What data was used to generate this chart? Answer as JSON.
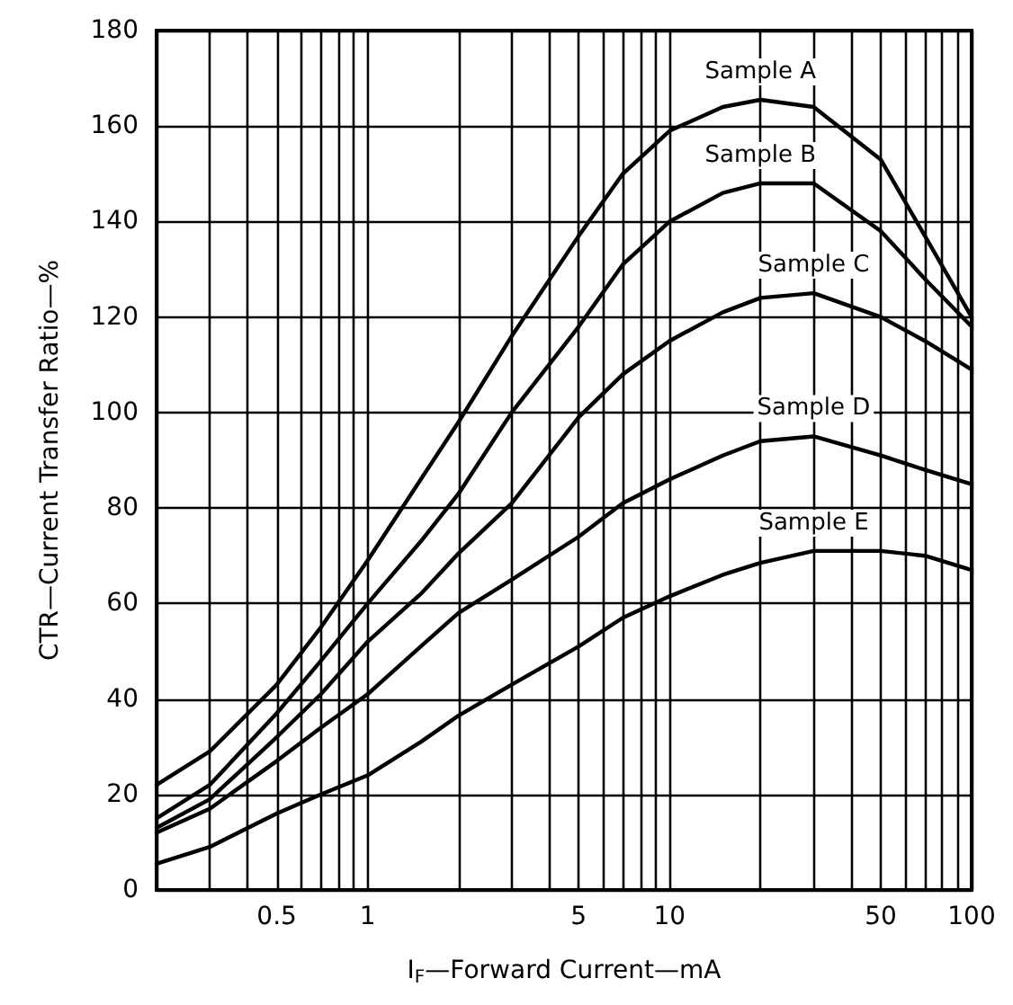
{
  "chart_data": {
    "type": "line",
    "xlabel": "I$_{F}$—Forward Current—mA",
    "ylabel": "CTR—Current Transfer Ratio—%",
    "log": "x",
    "grid": true,
    "legend": false,
    "marker": "none",
    "line_style": "solid",
    "xlim": [
      0.2,
      100
    ],
    "ylim": [
      0,
      180
    ],
    "xticks": [
      {
        "value": 0.2,
        "label": null
      },
      {
        "value": 0.3,
        "label": null
      },
      {
        "value": 0.4,
        "label": null
      },
      0.5,
      {
        "value": 0.6,
        "label": null
      },
      {
        "value": 0.7,
        "label": null
      },
      {
        "value": 0.8,
        "label": null
      },
      {
        "value": 0.9,
        "label": null
      },
      1,
      {
        "value": 2,
        "label": null
      },
      {
        "value": 3,
        "label": null
      },
      {
        "value": 4,
        "label": null
      },
      5,
      {
        "value": 6,
        "label": null
      },
      {
        "value": 7,
        "label": null
      },
      {
        "value": 8,
        "label": null
      },
      {
        "value": 9,
        "label": null
      },
      10,
      {
        "value": 20,
        "label": null
      },
      {
        "value": 30,
        "label": null
      },
      {
        "value": 40,
        "label": null
      },
      50,
      {
        "value": 60,
        "label": null
      },
      {
        "value": 70,
        "label": null
      },
      {
        "value": 80,
        "label": null
      },
      {
        "value": 90,
        "label": null
      },
      100
    ],
    "yticks": [
      0,
      20,
      40,
      60,
      80,
      100,
      120,
      140,
      160,
      180
    ],
    "x": [
      0.2,
      0.3,
      0.5,
      0.7,
      1,
      1.5,
      2,
      3,
      5,
      7,
      10,
      15,
      20,
      30,
      50,
      70,
      100
    ],
    "series": [
      {
        "name": "Sample A",
        "color": "#000000",
        "values": [
          22,
          29,
          43,
          55,
          69,
          86,
          98,
          116,
          137,
          150,
          159,
          164,
          165.5,
          164,
          153,
          137,
          120
        ]
      },
      {
        "name": "Sample B",
        "color": "#000000",
        "values": [
          15,
          22,
          37,
          48,
          60,
          73,
          83,
          100,
          118,
          131,
          140,
          146,
          148,
          148,
          138,
          128,
          118
        ]
      },
      {
        "name": "Sample C",
        "color": "#000000",
        "values": [
          13,
          19,
          32,
          41,
          52,
          62,
          70.5,
          81,
          99,
          108,
          115,
          121,
          124,
          125,
          120,
          115,
          109
        ]
      },
      {
        "name": "Sample D",
        "color": "#000000",
        "values": [
          12,
          17,
          27,
          34,
          41,
          51,
          58,
          65,
          74,
          81,
          86,
          91,
          94,
          95,
          91,
          88,
          85
        ]
      },
      {
        "name": "Sample E",
        "color": "#000000",
        "values": [
          5.5,
          9,
          16,
          20,
          24,
          31,
          36.5,
          43,
          51,
          57,
          61.5,
          66,
          68.5,
          71,
          71,
          70,
          67
        ]
      }
    ]
  }
}
